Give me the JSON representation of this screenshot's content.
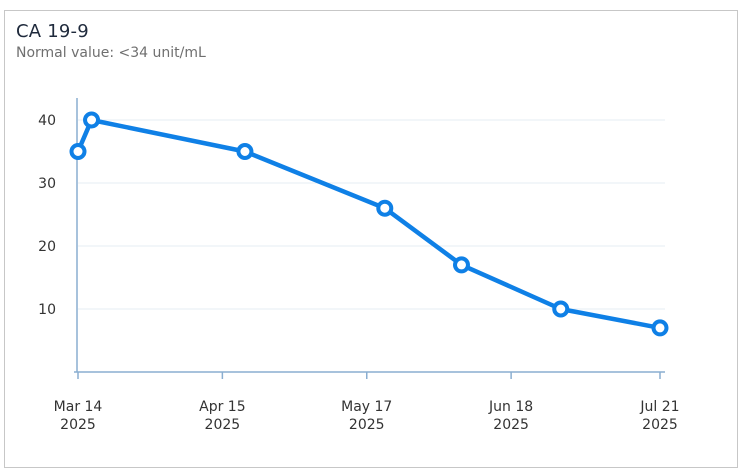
{
  "card": {
    "title": "CA 19-9",
    "subtitle": "Normal value: <34 unit/mL"
  },
  "colors": {
    "line": "#0f80e6",
    "grid": "#e6edf3",
    "axis": "#8aaed0"
  },
  "chart_data": {
    "type": "line",
    "title": "CA 19-9",
    "subtitle": "Normal value: <34 unit/mL",
    "xlabel": "",
    "ylabel": "",
    "x_ticks": [
      {
        "date": "2025-03-14",
        "line1": "Mar 14",
        "line2": "2025"
      },
      {
        "date": "2025-04-15",
        "line1": "Apr 15",
        "line2": "2025"
      },
      {
        "date": "2025-05-17",
        "line1": "May 17",
        "line2": "2025"
      },
      {
        "date": "2025-06-18",
        "line1": "Jun 18",
        "line2": "2025"
      },
      {
        "date": "2025-07-21",
        "line1": "Jul 21",
        "line2": "2025"
      }
    ],
    "y_ticks": [
      10,
      20,
      30,
      40
    ],
    "ylim": [
      0,
      45
    ],
    "xlim": [
      "2025-03-14",
      "2025-07-21"
    ],
    "grid": true,
    "series": [
      {
        "points": [
          {
            "x": "2025-03-14",
            "y": 35
          },
          {
            "x": "2025-03-17",
            "y": 40
          },
          {
            "x": "2025-04-20",
            "y": 35
          },
          {
            "x": "2025-05-21",
            "y": 26
          },
          {
            "x": "2025-06-07",
            "y": 17
          },
          {
            "x": "2025-06-29",
            "y": 10
          },
          {
            "x": "2025-07-21",
            "y": 7
          }
        ]
      }
    ]
  }
}
